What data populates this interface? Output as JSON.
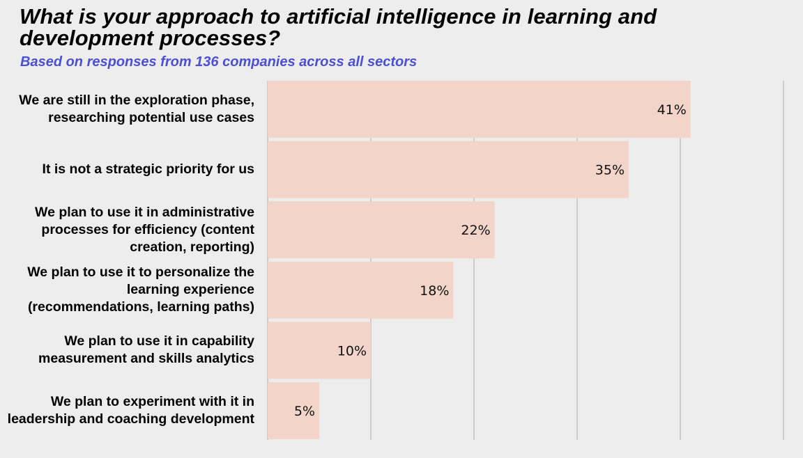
{
  "chart_data": {
    "type": "bar",
    "orientation": "horizontal",
    "title": "What is your approach to artificial intelligence in learning and development processes?",
    "subtitle": "Based on responses from 136 companies across all sectors",
    "categories": [
      "We are still in the exploration phase, researching potential use cases",
      "It is not a strategic priority for us",
      "We plan to use it in administrative processes for efficiency (content creation, reporting)",
      "We plan to use it to personalize the learning experience (recommendations, learning paths)",
      "We plan to use it in capability measurement and skills analytics",
      "We plan to experiment with it in leadership and coaching development"
    ],
    "values": [
      41,
      35,
      22,
      18,
      10,
      5
    ],
    "value_labels": [
      "41%",
      "35%",
      "22%",
      "18%",
      "10%",
      "5%"
    ],
    "xlim": [
      0,
      50
    ],
    "x_gridlines": [
      10,
      20,
      30,
      40,
      50
    ],
    "grid": true,
    "bar_color": "#f2d5c8",
    "gridline_color": "#b8b8b8",
    "subtitle_color": "#4a4fd6"
  }
}
